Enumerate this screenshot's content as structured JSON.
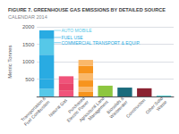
{
  "chart_data": {
    "type": "bar",
    "title": "FIGURE 7. GREENHOUSE GAS EMISSIONS BY DETAILED SOURCE",
    "subtitle": "CALENDAR 2014",
    "ylabel": "Metric Tonnes",
    "categories": [
      "Transportation &\nFuel Combustion",
      "Natural Gas",
      "Purchased\nElectric Power",
      "Agricultural Land\nManagement",
      "Biosolids &\nWastewater",
      "Construction",
      "Other Solid\nWaste"
    ],
    "stacked": true,
    "series": [
      {
        "values": [
          220,
          160,
          130,
          310,
          255,
          235,
          18
        ],
        "colors": [
          "#56c8e8",
          "#f0537a",
          "#f7941d",
          "#8dc63f",
          "#1a6b7c",
          "#8b2332",
          "#00b5b8"
        ]
      },
      {
        "values": [
          280,
          220,
          150,
          null,
          null,
          null,
          null
        ],
        "colors": [
          "#29abe2",
          "#e8456a",
          "#fab86a",
          null,
          null,
          null,
          null
        ]
      },
      {
        "values": [
          700,
          200,
          180,
          null,
          null,
          null,
          null
        ],
        "colors": [
          "#29abe2",
          "#f0537a",
          "#f7941d",
          null,
          null,
          null,
          null
        ]
      },
      {
        "values": [
          450,
          null,
          200,
          null,
          null,
          null,
          null
        ],
        "colors": [
          "#56c8e8",
          null,
          "#fab86a",
          null,
          null,
          null,
          null
        ]
      },
      {
        "values": [
          250,
          null,
          220,
          null,
          null,
          null,
          null
        ],
        "colors": [
          "#29abe2",
          null,
          "#f7941d",
          null,
          null,
          null,
          null
        ]
      },
      {
        "values": [
          null,
          null,
          170,
          null,
          null,
          null,
          null
        ],
        "colors": [
          null,
          null,
          "#fab86a",
          null,
          null,
          null,
          null
        ]
      }
    ],
    "ylim": [
      0,
      2000
    ],
    "yticks": [
      500,
      1000,
      1500,
      2000
    ],
    "grid": true,
    "annotations": [
      {
        "text": "AUTO MOBILE",
        "y": 1895,
        "color": "#56c8e8",
        "category": "Transportation &\nFuel Combustion"
      },
      {
        "text": "FUEL USE",
        "y": 1695,
        "color": "#29abe2",
        "category": "Transportation &\nFuel Combustion"
      },
      {
        "text": "COMMERCIAL TRANSPORT & EQUIP.",
        "y": 1545,
        "color": "#29abe2",
        "category": "Transportation &\nFuel Combustion"
      }
    ]
  }
}
